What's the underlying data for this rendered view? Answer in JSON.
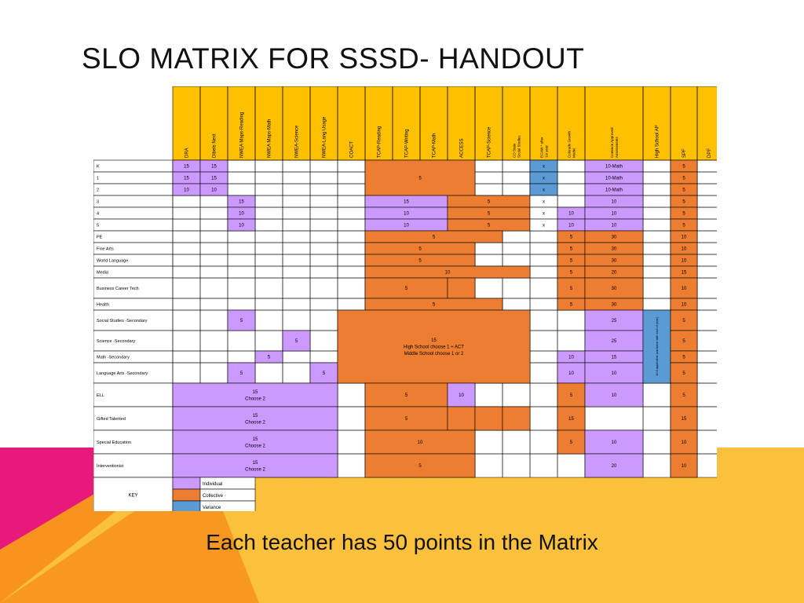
{
  "slide": {
    "title": "SLO MATRIX FOR SSSD- HANDOUT",
    "caption": "Each teacher has 50 points in the Matrix"
  },
  "colors": {
    "individual": "#CC99FF",
    "collective": "#ED7D31",
    "variance": "#5B9BD5",
    "header": "#FFC000",
    "bg_yellow": "#FCC13C",
    "bg_orange": "#F7931E",
    "bg_magenta": "#E8197A"
  },
  "matrix": {
    "columns": [
      "DRA",
      "Dibels Next",
      "NWEA Maps-Reading",
      "NWEA Maps-Math",
      "NWEA-Science",
      "NWEA-Lang Usage",
      "COACT",
      "TCAP-Reading",
      "TCAP-Writing",
      "TCAP-Math",
      "ACCESS",
      "TCAP-Science",
      "CO State Social Studies",
      "ECAW * after 1st year",
      "Colorado Growth Model",
      "Common Approved Assessments",
      "High School AP",
      "SPF",
      "DPF"
    ],
    "rows": [
      "K",
      "1",
      "2",
      "3",
      "4",
      "5",
      "PE",
      "Fine Arts",
      "World Language",
      "Media",
      "Business Career Tech",
      "Health",
      "Social Studies  -Secondary",
      "Science  -Secondary",
      "Math  -Secondary",
      "Language Arts -Secondary",
      "ELL",
      "Gifted Talented",
      "Special Education",
      "Interventionist"
    ],
    "cells": [
      {
        "r": 0,
        "c": 0,
        "fill": "i",
        "text": "15"
      },
      {
        "r": 0,
        "c": 1,
        "fill": "i",
        "text": "15"
      },
      {
        "r": 1,
        "c": 0,
        "fill": "i",
        "text": "15"
      },
      {
        "r": 1,
        "c": 1,
        "fill": "i",
        "text": "15"
      },
      {
        "r": 2,
        "c": 0,
        "fill": "i",
        "text": "10"
      },
      {
        "r": 2,
        "c": 1,
        "fill": "i",
        "text": "10"
      },
      {
        "r": 0,
        "c": 7,
        "rs": 3,
        "cs": 4,
        "fill": "c",
        "text": "5"
      },
      {
        "r": 0,
        "c": 13,
        "fill": "v",
        "text": "x"
      },
      {
        "r": 1,
        "c": 13,
        "fill": "v",
        "text": "x"
      },
      {
        "r": 2,
        "c": 13,
        "fill": "v",
        "text": "x"
      },
      {
        "r": 0,
        "c": 15,
        "fill": "i",
        "text": "10-Math"
      },
      {
        "r": 1,
        "c": 15,
        "fill": "i",
        "text": "10-Math"
      },
      {
        "r": 2,
        "c": 15,
        "fill": "i",
        "text": "10-Math"
      },
      {
        "r": 0,
        "c": 17,
        "fill": "c",
        "text": "5"
      },
      {
        "r": 1,
        "c": 17,
        "fill": "c",
        "text": "5"
      },
      {
        "r": 2,
        "c": 17,
        "fill": "c",
        "text": "5"
      },
      {
        "r": 3,
        "c": 2,
        "fill": "i",
        "text": "15"
      },
      {
        "r": 4,
        "c": 2,
        "fill": "i",
        "text": "10"
      },
      {
        "r": 5,
        "c": 2,
        "fill": "i",
        "text": "10"
      },
      {
        "r": 3,
        "c": 7,
        "cs": 3,
        "fill": "i",
        "text": "15"
      },
      {
        "r": 4,
        "c": 7,
        "cs": 3,
        "fill": "i",
        "text": "10"
      },
      {
        "r": 5,
        "c": 7,
        "cs": 3,
        "fill": "i",
        "text": "10"
      },
      {
        "r": 3,
        "c": 10,
        "cs": 3,
        "fill": "c",
        "text": "5"
      },
      {
        "r": 4,
        "c": 10,
        "cs": 3,
        "fill": "c",
        "text": "5"
      },
      {
        "r": 5,
        "c": 10,
        "cs": 3,
        "fill": "c",
        "text": "5"
      },
      {
        "r": 3,
        "c": 13,
        "fill": "w",
        "text": "x"
      },
      {
        "r": 4,
        "c": 13,
        "fill": "w",
        "text": "x"
      },
      {
        "r": 5,
        "c": 13,
        "fill": "w",
        "text": "x"
      },
      {
        "r": 4,
        "c": 14,
        "fill": "i",
        "text": "10"
      },
      {
        "r": 5,
        "c": 14,
        "fill": "i",
        "text": "10"
      },
      {
        "r": 3,
        "c": 15,
        "fill": "i",
        "text": "10"
      },
      {
        "r": 4,
        "c": 15,
        "fill": "i",
        "text": "10"
      },
      {
        "r": 5,
        "c": 15,
        "fill": "i",
        "text": "10"
      },
      {
        "r": 3,
        "c": 17,
        "fill": "c",
        "text": "5"
      },
      {
        "r": 4,
        "c": 17,
        "fill": "c",
        "text": "5"
      },
      {
        "r": 5,
        "c": 17,
        "fill": "c",
        "text": "5"
      },
      {
        "r": 6,
        "c": 7,
        "cs": 5,
        "fill": "c",
        "text": "5"
      },
      {
        "r": 6,
        "c": 14,
        "fill": "c",
        "text": "5"
      },
      {
        "r": 6,
        "c": 15,
        "fill": "c",
        "text": "30"
      },
      {
        "r": 6,
        "c": 17,
        "fill": "c",
        "text": "10"
      },
      {
        "r": 7,
        "c": 7,
        "cs": 4,
        "fill": "c",
        "text": "5"
      },
      {
        "r": 7,
        "c": 14,
        "fill": "c",
        "text": "5"
      },
      {
        "r": 7,
        "c": 15,
        "fill": "c",
        "text": "30"
      },
      {
        "r": 7,
        "c": 17,
        "fill": "c",
        "text": "10"
      },
      {
        "r": 8,
        "c": 7,
        "cs": 4,
        "fill": "c",
        "text": "5"
      },
      {
        "r": 8,
        "c": 14,
        "fill": "c",
        "text": "5"
      },
      {
        "r": 8,
        "c": 15,
        "fill": "c",
        "text": "30"
      },
      {
        "r": 8,
        "c": 17,
        "fill": "c",
        "text": "10"
      },
      {
        "r": 9,
        "c": 7,
        "cs": 6,
        "fill": "c",
        "text": "10"
      },
      {
        "r": 9,
        "c": 14,
        "fill": "c",
        "text": "5"
      },
      {
        "r": 9,
        "c": 15,
        "fill": "c",
        "text": "20"
      },
      {
        "r": 9,
        "c": 17,
        "fill": "c",
        "text": "15"
      },
      {
        "r": 10,
        "c": 7,
        "cs": 3,
        "fill": "c",
        "text": "5"
      },
      {
        "r": 10,
        "c": 10,
        "fill": "c",
        "text": ""
      },
      {
        "r": 10,
        "c": 14,
        "fill": "c",
        "text": "5"
      },
      {
        "r": 10,
        "c": 15,
        "fill": "c",
        "text": "30"
      },
      {
        "r": 10,
        "c": 17,
        "fill": "c",
        "text": "10"
      },
      {
        "r": 11,
        "c": 7,
        "cs": 5,
        "fill": "c",
        "text": "5"
      },
      {
        "r": 11,
        "c": 14,
        "fill": "c",
        "text": "5"
      },
      {
        "r": 11,
        "c": 15,
        "fill": "c",
        "text": "30"
      },
      {
        "r": 11,
        "c": 17,
        "fill": "c",
        "text": "10"
      },
      {
        "r": 12,
        "c": 2,
        "fill": "i",
        "text": "5"
      },
      {
        "r": 13,
        "c": 4,
        "fill": "i",
        "text": "5"
      },
      {
        "r": 14,
        "c": 3,
        "fill": "i",
        "text": "5"
      },
      {
        "r": 15,
        "c": 2,
        "fill": "i",
        "text": "5"
      },
      {
        "r": 15,
        "c": 5,
        "fill": "i",
        "text": "5"
      },
      {
        "r": 12,
        "c": 6,
        "rs": 4,
        "cs": 7,
        "fill": "c",
        "text": "15\nHigh School choose 1 + ACT\nMiddle School choose 1 or 2"
      },
      {
        "r": 12,
        "c": 15,
        "fill": "i",
        "text": "25"
      },
      {
        "r": 13,
        "c": 15,
        "fill": "i",
        "text": "25"
      },
      {
        "r": 14,
        "c": 14,
        "fill": "i",
        "text": "10"
      },
      {
        "r": 14,
        "c": 15,
        "fill": "i",
        "text": "15"
      },
      {
        "r": 15,
        "c": 14,
        "fill": "i",
        "text": "10"
      },
      {
        "r": 15,
        "c": 15,
        "fill": "i",
        "text": "10"
      },
      {
        "r": 12,
        "c": 16,
        "rs": 4,
        "fill": "v",
        "text": "10 if applicable (variance with end of year)",
        "vertical": true
      },
      {
        "r": 12,
        "c": 17,
        "fill": "c",
        "text": "5"
      },
      {
        "r": 13,
        "c": 17,
        "fill": "c",
        "text": "5"
      },
      {
        "r": 14,
        "c": 17,
        "fill": "c",
        "text": "5"
      },
      {
        "r": 15,
        "c": 17,
        "fill": "c",
        "text": "5"
      },
      {
        "r": 16,
        "c": 0,
        "cs": 6,
        "fill": "i",
        "text": "15\nChoose 2"
      },
      {
        "r": 16,
        "c": 7,
        "cs": 3,
        "fill": "c",
        "text": "5"
      },
      {
        "r": 16,
        "c": 10,
        "fill": "i",
        "text": "10"
      },
      {
        "r": 16,
        "c": 14,
        "fill": "c",
        "text": "5"
      },
      {
        "r": 16,
        "c": 15,
        "fill": "i",
        "text": "10"
      },
      {
        "r": 16,
        "c": 17,
        "fill": "c",
        "text": "5"
      },
      {
        "r": 17,
        "c": 0,
        "cs": 6,
        "fill": "i",
        "text": "15\nChoose 2"
      },
      {
        "r": 17,
        "c": 7,
        "cs": 3,
        "fill": "c",
        "text": "5"
      },
      {
        "r": 17,
        "c": 10,
        "fill": "c",
        "text": ""
      },
      {
        "r": 17,
        "c": 11,
        "fill": "c",
        "text": ""
      },
      {
        "r": 17,
        "c": 12,
        "fill": "c",
        "text": ""
      },
      {
        "r": 17,
        "c": 14,
        "fill": "c",
        "text": "15"
      },
      {
        "r": 17,
        "c": 17,
        "fill": "c",
        "text": "15"
      },
      {
        "r": 18,
        "c": 0,
        "cs": 6,
        "fill": "i",
        "text": "15\nChoose 2"
      },
      {
        "r": 18,
        "c": 7,
        "cs": 4,
        "fill": "c",
        "text": "10"
      },
      {
        "r": 18,
        "c": 14,
        "fill": "c",
        "text": "5"
      },
      {
        "r": 18,
        "c": 15,
        "fill": "i",
        "text": "10"
      },
      {
        "r": 18,
        "c": 17,
        "fill": "c",
        "text": "10"
      },
      {
        "r": 19,
        "c": 0,
        "cs": 6,
        "fill": "i",
        "text": "15\nChoose 2"
      },
      {
        "r": 19,
        "c": 7,
        "cs": 4,
        "fill": "c",
        "text": "5"
      },
      {
        "r": 19,
        "c": 15,
        "fill": "i",
        "text": "20"
      },
      {
        "r": 19,
        "c": 17,
        "fill": "c",
        "text": "10"
      }
    ]
  },
  "key": {
    "label": "KEY",
    "items": [
      {
        "fill": "i",
        "label": "Individual"
      },
      {
        "fill": "c",
        "label": "Collective"
      },
      {
        "fill": "v",
        "label": "Variance"
      }
    ]
  }
}
